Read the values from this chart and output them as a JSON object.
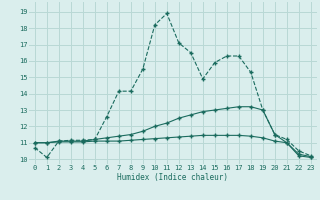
{
  "xlabel": "Humidex (Indice chaleur)",
  "bg_color": "#daeeed",
  "grid_color": "#b8d8d5",
  "line_color": "#1a6b5e",
  "x_ticks": [
    0,
    1,
    2,
    3,
    4,
    5,
    6,
    7,
    8,
    9,
    10,
    11,
    12,
    13,
    14,
    15,
    16,
    17,
    18,
    19,
    20,
    21,
    22,
    23
  ],
  "y_ticks": [
    10,
    11,
    12,
    13,
    14,
    15,
    16,
    17,
    18,
    19
  ],
  "ylim": [
    9.7,
    19.6
  ],
  "xlim": [
    -0.5,
    23.5
  ],
  "line1_x": [
    0,
    1,
    2,
    3,
    4,
    5,
    6,
    7,
    8,
    9,
    10,
    11,
    12,
    13,
    14,
    15,
    16,
    17,
    18,
    19,
    20,
    21,
    22,
    23
  ],
  "line1_y": [
    10.7,
    10.1,
    11.1,
    11.15,
    11.15,
    11.2,
    12.6,
    14.15,
    14.15,
    15.5,
    18.2,
    18.9,
    17.1,
    16.5,
    14.9,
    15.9,
    16.3,
    16.3,
    15.3,
    13.0,
    11.5,
    11.2,
    10.5,
    10.2
  ],
  "line2_x": [
    0,
    1,
    2,
    3,
    4,
    5,
    6,
    7,
    8,
    9,
    10,
    11,
    12,
    13,
    14,
    15,
    16,
    17,
    18,
    19,
    20,
    21,
    22,
    23
  ],
  "line2_y": [
    11.0,
    11.0,
    11.1,
    11.1,
    11.1,
    11.2,
    11.3,
    11.4,
    11.5,
    11.7,
    12.0,
    12.2,
    12.5,
    12.7,
    12.9,
    13.0,
    13.1,
    13.2,
    13.2,
    13.0,
    11.5,
    11.0,
    10.3,
    10.15
  ],
  "line3_x": [
    0,
    1,
    2,
    3,
    4,
    5,
    6,
    7,
    8,
    9,
    10,
    11,
    12,
    13,
    14,
    15,
    16,
    17,
    18,
    19,
    20,
    21,
    22,
    23
  ],
  "line3_y": [
    11.0,
    11.0,
    11.05,
    11.05,
    11.05,
    11.1,
    11.1,
    11.1,
    11.15,
    11.2,
    11.25,
    11.3,
    11.35,
    11.4,
    11.45,
    11.45,
    11.45,
    11.45,
    11.4,
    11.3,
    11.1,
    11.0,
    10.2,
    10.1
  ]
}
